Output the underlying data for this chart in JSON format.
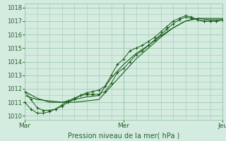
{
  "xlabel": "Pression niveau de la mer( hPa )",
  "bg_color": "#d4ece0",
  "grid_color": "#a0c8b0",
  "line_color": "#1a5c1a",
  "tick_color": "#2a6030",
  "label_color": "#2a6030",
  "ylim": [
    1009.7,
    1018.3
  ],
  "yticks": [
    1010,
    1011,
    1012,
    1013,
    1014,
    1015,
    1016,
    1017,
    1018
  ],
  "xlim": [
    0,
    96
  ],
  "xtick_positions": [
    0,
    48,
    96
  ],
  "xtick_labels": [
    "Mar",
    "Mer",
    "Jeu"
  ],
  "vline_positions": [
    0,
    48,
    96
  ],
  "series": [
    {
      "x": [
        0,
        3,
        6,
        9,
        12,
        15,
        18,
        21,
        24,
        27,
        30,
        33,
        36,
        39,
        42,
        45,
        48,
        51,
        54,
        57,
        60,
        63,
        66,
        69,
        72,
        75,
        78,
        81,
        84,
        87,
        90,
        93,
        96
      ],
      "y": [
        1011.8,
        1011.2,
        1010.6,
        1010.4,
        1010.4,
        1010.5,
        1010.7,
        1011.0,
        1011.2,
        1011.5,
        1011.7,
        1011.8,
        1011.9,
        1012.2,
        1013.0,
        1013.8,
        1014.2,
        1014.8,
        1015.0,
        1015.2,
        1015.5,
        1015.8,
        1016.2,
        1016.6,
        1017.0,
        1017.2,
        1017.4,
        1017.3,
        1017.1,
        1017.0,
        1017.0,
        1017.0,
        1017.1
      ],
      "marker": "+"
    },
    {
      "x": [
        0,
        3,
        6,
        9,
        12,
        15,
        18,
        21,
        24,
        27,
        30,
        33,
        36,
        39,
        42,
        45,
        48,
        51,
        54,
        57,
        60,
        63,
        66,
        69,
        72,
        75,
        78,
        81,
        84,
        87,
        90,
        93,
        96
      ],
      "y": [
        1011.0,
        1010.5,
        1010.2,
        1010.2,
        1010.3,
        1010.5,
        1010.8,
        1011.1,
        1011.3,
        1011.5,
        1011.6,
        1011.6,
        1011.6,
        1011.8,
        1012.4,
        1013.2,
        1013.5,
        1014.0,
        1014.5,
        1014.8,
        1015.2,
        1015.6,
        1016.0,
        1016.4,
        1016.8,
        1017.1,
        1017.3,
        1017.2,
        1017.1,
        1017.0,
        1017.0,
        1017.0,
        1017.1
      ],
      "marker": "+"
    },
    {
      "x": [
        0,
        6,
        12,
        18,
        24,
        30,
        36,
        42,
        48,
        54,
        60,
        66,
        72,
        78,
        84,
        90,
        96
      ],
      "y": [
        1011.5,
        1011.2,
        1011.1,
        1011.0,
        1011.2,
        1011.4,
        1011.5,
        1012.8,
        1013.8,
        1014.6,
        1015.2,
        1015.9,
        1016.5,
        1017.0,
        1017.2,
        1017.1,
        1017.1
      ],
      "marker": null
    },
    {
      "x": [
        0,
        6,
        12,
        18,
        24,
        30,
        36,
        42,
        48,
        54,
        60,
        66,
        72,
        78,
        84,
        90,
        96
      ],
      "y": [
        1011.8,
        1011.3,
        1011.0,
        1011.0,
        1011.0,
        1011.1,
        1011.2,
        1012.2,
        1013.2,
        1014.2,
        1015.0,
        1015.8,
        1016.5,
        1017.0,
        1017.2,
        1017.2,
        1017.2
      ],
      "marker": null
    }
  ]
}
